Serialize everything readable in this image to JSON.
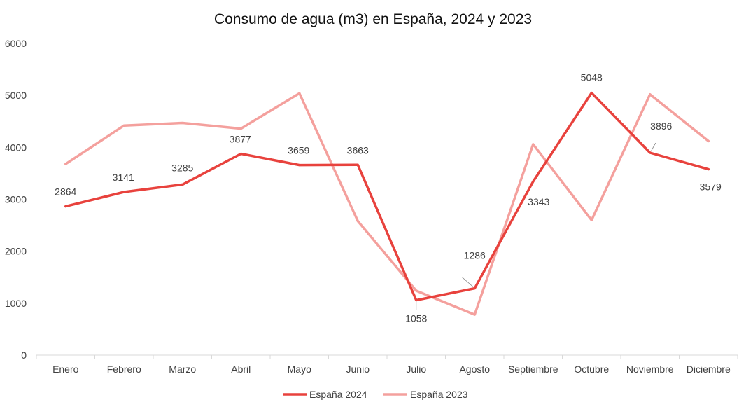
{
  "chart_data": {
    "type": "line",
    "title": "Consumo de agua (m3) en España, 2024 y 2023",
    "xlabel": "",
    "ylabel": "",
    "ylim": [
      0,
      6000
    ],
    "yticks": [
      "0",
      "1000",
      "2000",
      "3000",
      "4000",
      "5000",
      "6000"
    ],
    "categories": [
      "Enero",
      "Febrero",
      "Marzo",
      "Abril",
      "Mayo",
      "Junio",
      "Julio",
      "Agosto",
      "Septiembre",
      "Octubre",
      "Noviembre",
      "Diciembre"
    ],
    "grid": false,
    "legend_position": "bottom",
    "series": [
      {
        "name": "España 2024",
        "color": "#e8423d",
        "values": [
          2864,
          3141,
          3285,
          3877,
          3659,
          3663,
          1058,
          1286,
          3343,
          5048,
          3896,
          3579
        ],
        "labels": [
          "2864",
          "3141",
          "3285",
          "3877",
          "3659",
          "3663",
          "1058",
          "1286",
          "3343",
          "5048",
          "3896",
          "3579"
        ]
      },
      {
        "name": "España 2023",
        "color": "#f4a09d",
        "values": [
          3680,
          4420,
          4470,
          4360,
          5040,
          2580,
          1240,
          780,
          4060,
          2600,
          5020,
          4120
        ]
      }
    ]
  }
}
